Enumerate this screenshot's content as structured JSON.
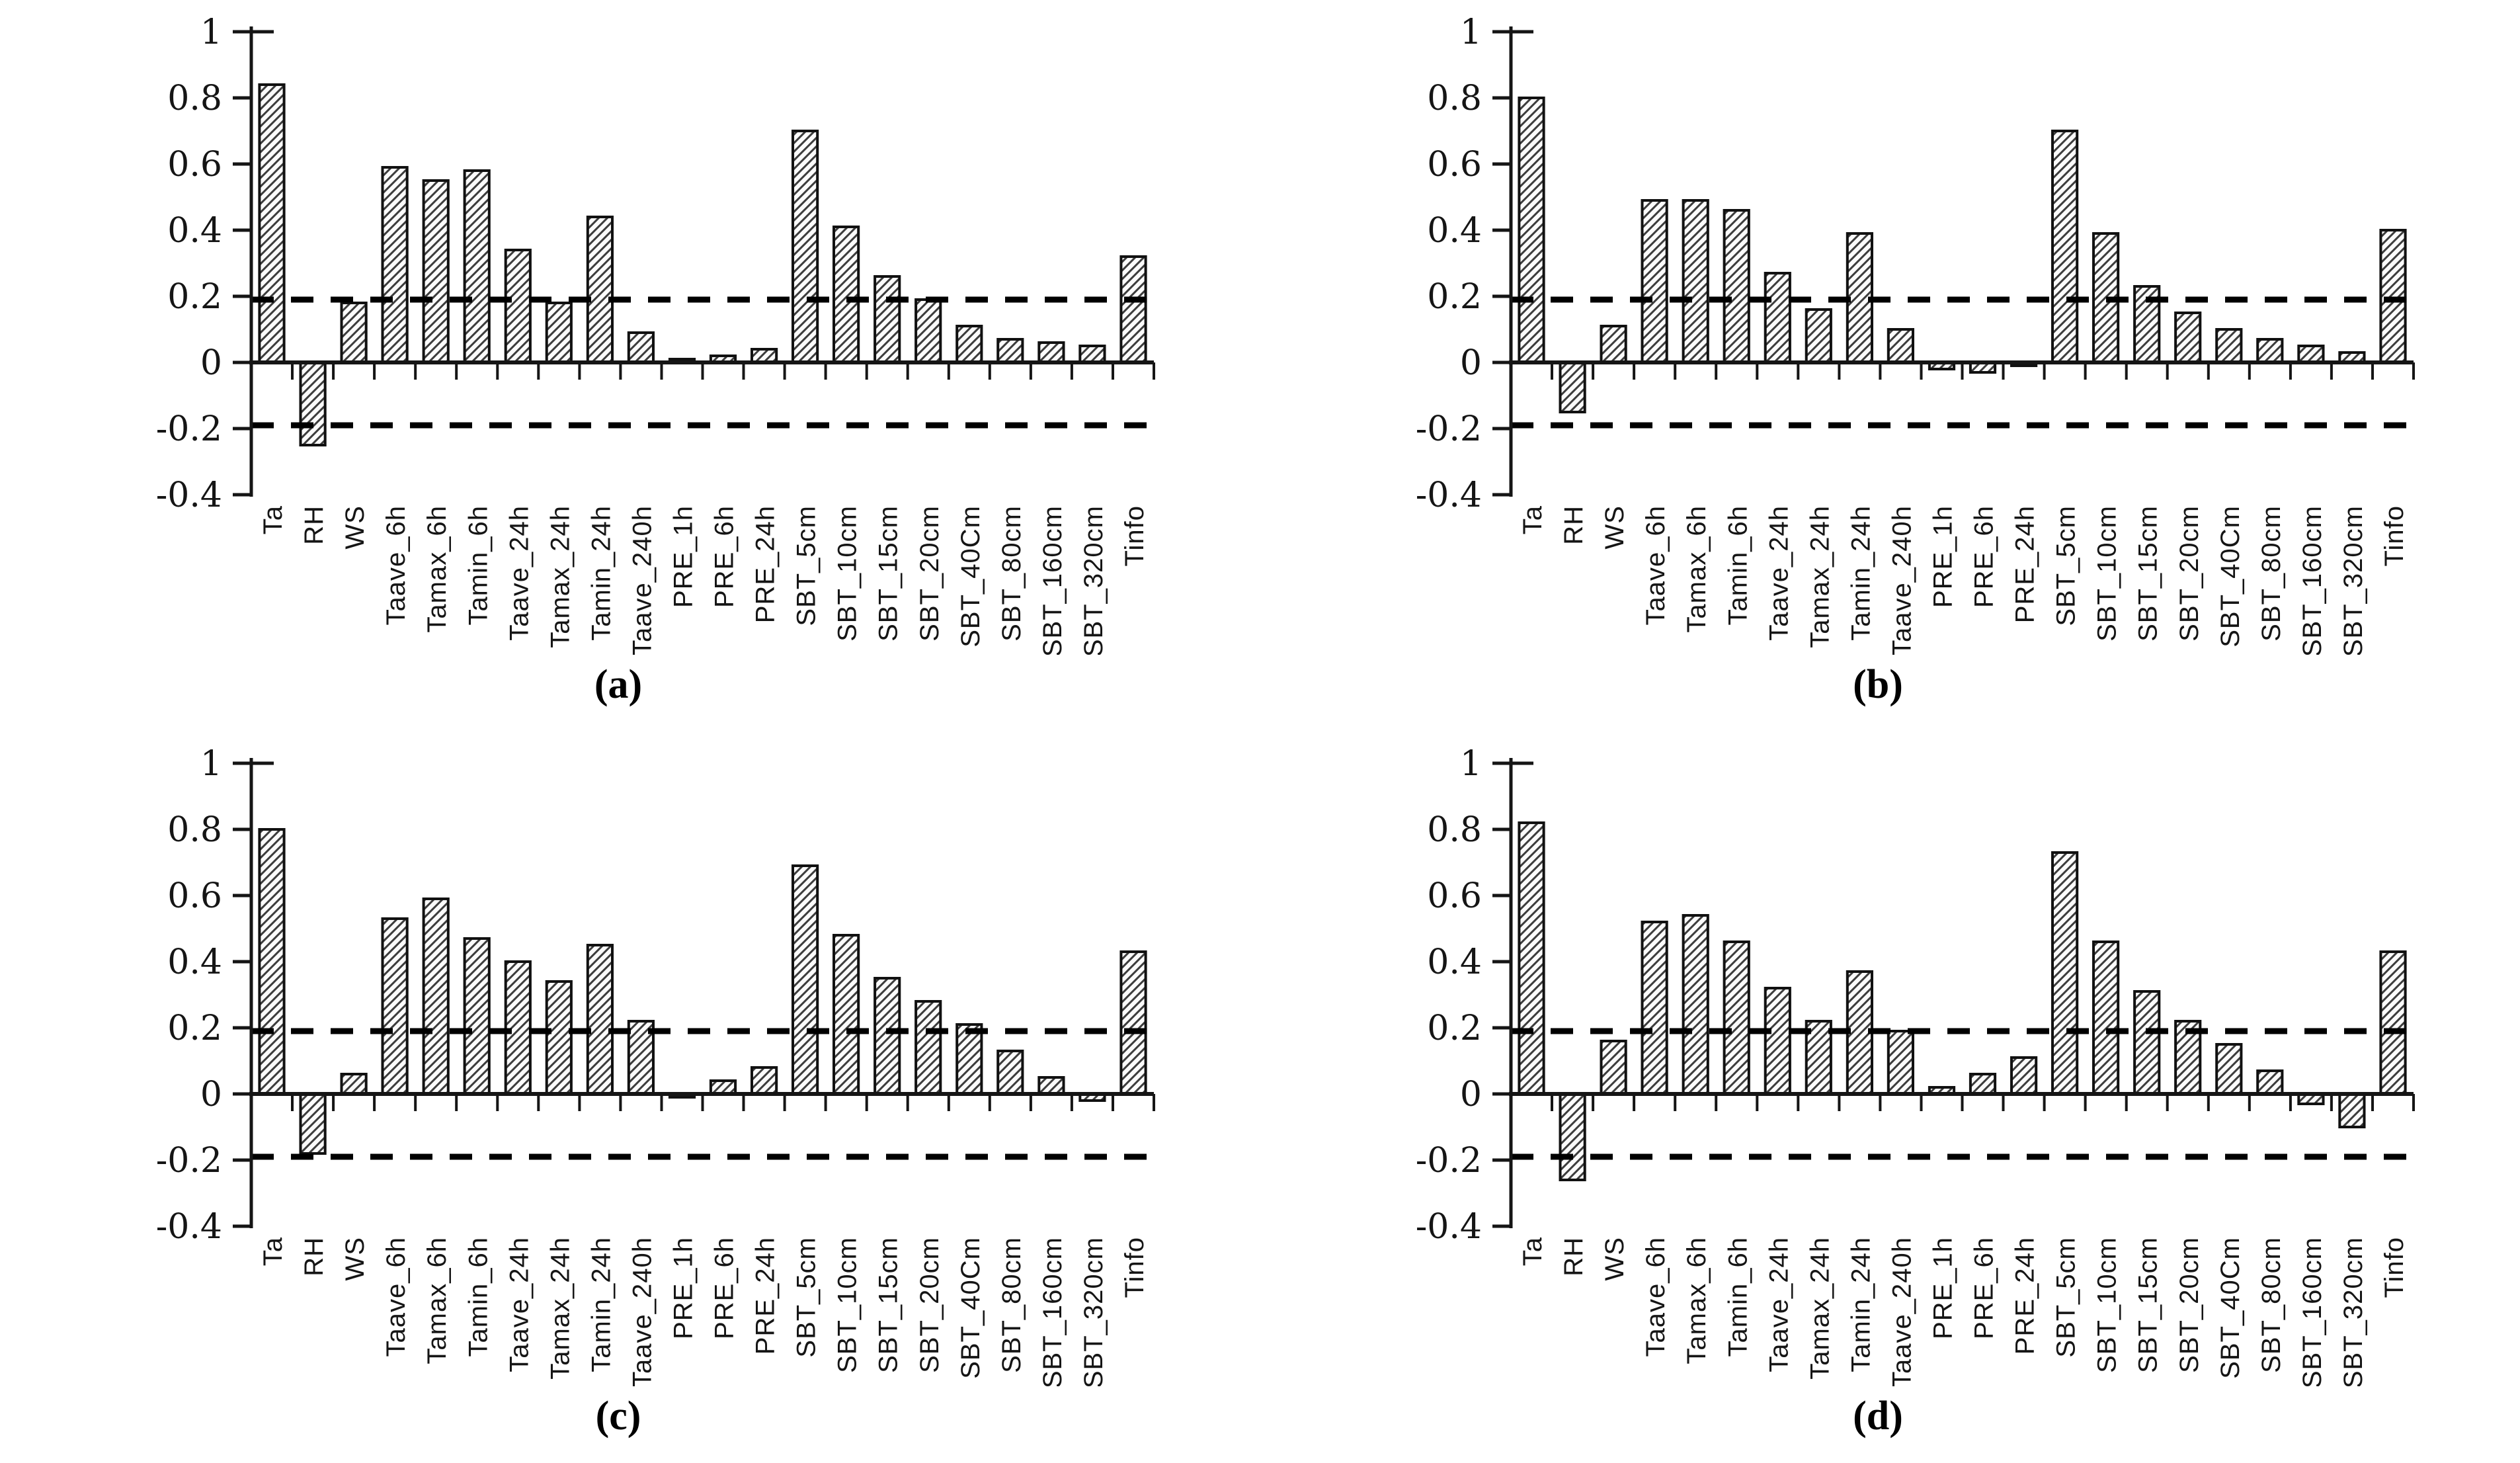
{
  "figure": {
    "description": "Four hatched bar charts of correlation coefficients for meteorological and soil variables, each with dashed significance threshold lines at +0.19 and -0.19",
    "captions": [
      "(a)",
      "(b)",
      "(c)",
      "(d)"
    ]
  },
  "style": {
    "axis_color": "#151515",
    "bar_outline": "#111111",
    "bar_fill": "#fbfbfb",
    "hatch_color": "#3c3c3c",
    "dash_color": "#000000",
    "text_color": "#151515"
  },
  "chart_data": [
    {
      "type": "bar",
      "title": "(a)",
      "xlabel": "",
      "ylabel": "",
      "grid": false,
      "legend": false,
      "hatch": "diagonal",
      "ylim": [
        -0.4,
        1
      ],
      "threshold_lines": [
        0.19,
        -0.19
      ],
      "yticks": [
        {
          "label": "1",
          "value": 1
        },
        {
          "label": "0.8",
          "value": 0.8
        },
        {
          "label": "0.6",
          "value": 0.6
        },
        {
          "label": "0.4",
          "value": 0.4
        },
        {
          "label": "0.2",
          "value": 0.2
        },
        {
          "label": "0",
          "value": 0
        },
        {
          "label": "-0.2",
          "value": -0.2
        },
        {
          "label": "-0.4",
          "value": -0.4
        }
      ],
      "categories": [
        "Ta",
        "RH",
        "WS",
        "Taave_6h",
        "Tamax_6h",
        "Tamin_6h",
        "Taave_24h",
        "Tamax_24h",
        "Tamin_24h",
        "Taave_240h",
        "PRE_1h",
        "PRE_6h",
        "PRE_24h",
        "SBT_5cm",
        "SBT_10cm",
        "SBT_15cm",
        "SBT_20cm",
        "SBT_40Cm",
        "SBT_80cm",
        "SBT_160cm",
        "SBT_320cm",
        "Tinfo"
      ],
      "values": [
        0.84,
        -0.25,
        0.18,
        0.59,
        0.55,
        0.58,
        0.34,
        0.18,
        0.44,
        0.09,
        0.01,
        0.02,
        0.04,
        0.7,
        0.41,
        0.26,
        0.19,
        0.11,
        0.07,
        0.06,
        0.05,
        0.32
      ]
    },
    {
      "type": "bar",
      "title": "(b)",
      "xlabel": "",
      "ylabel": "",
      "grid": false,
      "legend": false,
      "hatch": "diagonal",
      "ylim": [
        -0.4,
        1
      ],
      "threshold_lines": [
        0.19,
        -0.19
      ],
      "yticks": [
        {
          "label": "1",
          "value": 1
        },
        {
          "label": "0.8",
          "value": 0.8
        },
        {
          "label": "0.6",
          "value": 0.6
        },
        {
          "label": "0.4",
          "value": 0.4
        },
        {
          "label": "0.2",
          "value": 0.2
        },
        {
          "label": "0",
          "value": 0
        },
        {
          "label": "-0.2",
          "value": -0.2
        },
        {
          "label": "-0.4",
          "value": -0.4
        }
      ],
      "categories": [
        "Ta",
        "RH",
        "WS",
        "Taave_6h",
        "Tamax_6h",
        "Tamin_6h",
        "Taave_24h",
        "Tamax_24h",
        "Tamin_24h",
        "Taave_240h",
        "PRE_1h",
        "PRE_6h",
        "PRE_24h",
        "SBT_5cm",
        "SBT_10cm",
        "SBT_15cm",
        "SBT_20cm",
        "SBT_40Cm",
        "SBT_80cm",
        "SBT_160cm",
        "SBT_320cm",
        "Tinfo"
      ],
      "values": [
        0.8,
        -0.15,
        0.11,
        0.49,
        0.49,
        0.46,
        0.27,
        0.16,
        0.39,
        0.1,
        -0.02,
        -0.03,
        -0.01,
        0.7,
        0.39,
        0.23,
        0.15,
        0.1,
        0.07,
        0.05,
        0.03,
        0.4
      ]
    },
    {
      "type": "bar",
      "title": "(c)",
      "xlabel": "",
      "ylabel": "",
      "grid": false,
      "legend": false,
      "hatch": "diagonal",
      "ylim": [
        -0.4,
        1
      ],
      "threshold_lines": [
        0.19,
        -0.19
      ],
      "yticks": [
        {
          "label": "1",
          "value": 1
        },
        {
          "label": "0.8",
          "value": 0.8
        },
        {
          "label": "0.6",
          "value": 0.6
        },
        {
          "label": "0.4",
          "value": 0.4
        },
        {
          "label": "0.2",
          "value": 0.2
        },
        {
          "label": "0",
          "value": 0
        },
        {
          "label": "-0.2",
          "value": -0.2
        },
        {
          "label": "-0.4",
          "value": -0.4
        }
      ],
      "categories": [
        "Ta",
        "RH",
        "WS",
        "Taave_6h",
        "Tamax_6h",
        "Tamin_6h",
        "Taave_24h",
        "Tamax_24h",
        "Tamin_24h",
        "Taave_240h",
        "PRE_1h",
        "PRE_6h",
        "PRE_24h",
        "SBT_5cm",
        "SBT_10cm",
        "SBT_15cm",
        "SBT_20cm",
        "SBT_40Cm",
        "SBT_80cm",
        "SBT_160cm",
        "SBT_320cm",
        "Tinfo"
      ],
      "values": [
        0.8,
        -0.18,
        0.06,
        0.53,
        0.59,
        0.47,
        0.4,
        0.34,
        0.45,
        0.22,
        -0.01,
        0.04,
        0.08,
        0.69,
        0.48,
        0.35,
        0.28,
        0.21,
        0.13,
        0.05,
        -0.02,
        0.43
      ]
    },
    {
      "type": "bar",
      "title": "(d)",
      "xlabel": "",
      "ylabel": "",
      "grid": false,
      "legend": false,
      "hatch": "diagonal",
      "ylim": [
        -0.4,
        1
      ],
      "threshold_lines": [
        0.19,
        -0.19
      ],
      "yticks": [
        {
          "label": "1",
          "value": 1
        },
        {
          "label": "0.8",
          "value": 0.8
        },
        {
          "label": "0.6",
          "value": 0.6
        },
        {
          "label": "0.4",
          "value": 0.4
        },
        {
          "label": "0.2",
          "value": 0.2
        },
        {
          "label": "0",
          "value": 0
        },
        {
          "label": "-0.2",
          "value": -0.2
        },
        {
          "label": "-0.4",
          "value": -0.4
        }
      ],
      "categories": [
        "Ta",
        "RH",
        "WS",
        "Taave_6h",
        "Tamax_6h",
        "Tamin_6h",
        "Taave_24h",
        "Tamax_24h",
        "Tamin_24h",
        "Taave_240h",
        "PRE_1h",
        "PRE_6h",
        "PRE_24h",
        "SBT_5cm",
        "SBT_10cm",
        "SBT_15cm",
        "SBT_20cm",
        "SBT_40Cm",
        "SBT_80cm",
        "SBT_160cm",
        "SBT_320cm",
        "Tinfo"
      ],
      "values": [
        0.82,
        -0.26,
        0.16,
        0.52,
        0.54,
        0.46,
        0.32,
        0.22,
        0.37,
        0.19,
        0.02,
        0.06,
        0.11,
        0.73,
        0.46,
        0.31,
        0.22,
        0.15,
        0.07,
        -0.03,
        -0.1,
        0.43
      ]
    }
  ]
}
